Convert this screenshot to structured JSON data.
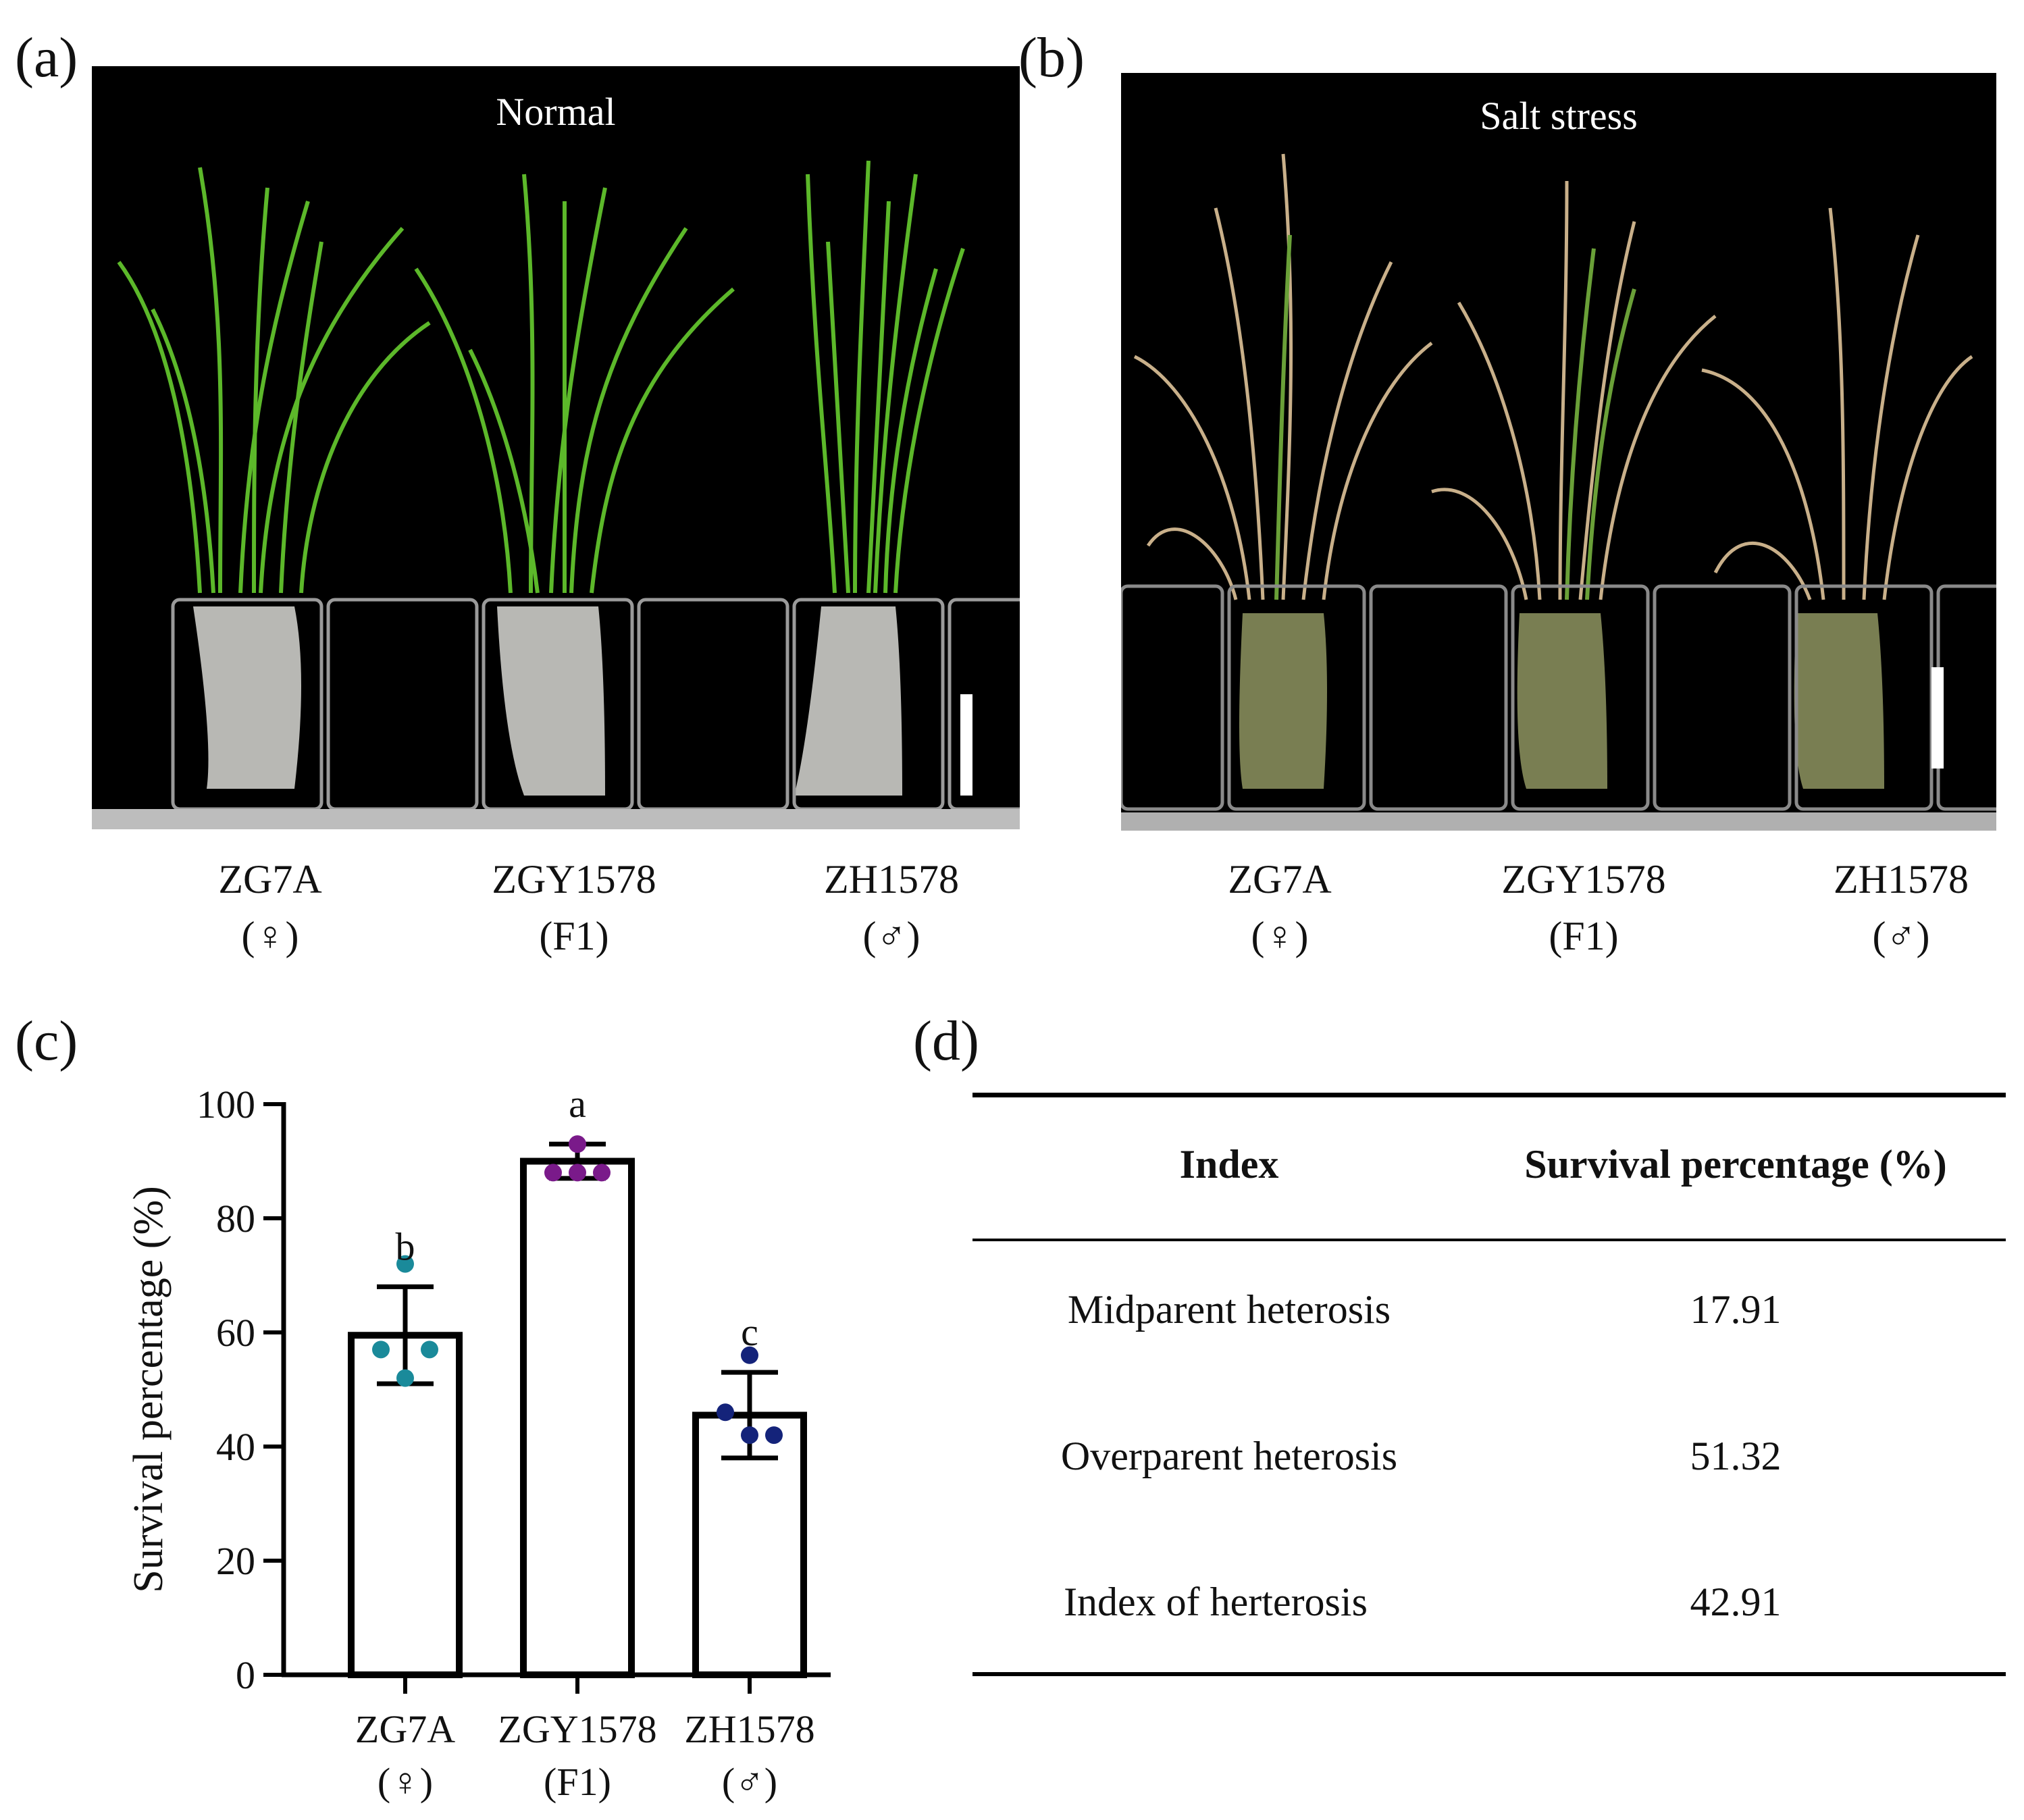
{
  "panels": {
    "a": {
      "label": "(a)",
      "title": "Normal"
    },
    "b": {
      "label": "(b)",
      "title": "Salt stress"
    },
    "c": {
      "label": "(c)"
    },
    "d": {
      "label": "(d)"
    }
  },
  "genotypes": [
    {
      "name": "ZG7A",
      "sub": "(♀)"
    },
    {
      "name": "ZGY1578",
      "sub": "(F1)"
    },
    {
      "name": "ZH1578",
      "sub": "(♂)"
    }
  ],
  "chart_data": {
    "type": "bar",
    "ylabel": "Survival percentage (%)",
    "ylim": [
      0,
      100
    ],
    "yticks": [
      0,
      20,
      40,
      60,
      80,
      100
    ],
    "categories": [
      "ZG7A",
      "ZGY1578",
      "ZH1578"
    ],
    "category_subs": [
      "(♀)",
      "(F1)",
      "(♂)"
    ],
    "values": [
      59.5,
      90,
      45.5
    ],
    "error": [
      8.5,
      3,
      7.5
    ],
    "significance": [
      "b",
      "a",
      "c"
    ],
    "points": [
      [
        72,
        57,
        57,
        52
      ],
      [
        93,
        88,
        88,
        88
      ],
      [
        56,
        46,
        42,
        42
      ]
    ],
    "point_colors": [
      "#1a8a9a",
      "#7a1a8a",
      "#14237a"
    ]
  },
  "table": {
    "headers": [
      "Index",
      "Survival percentage (%)"
    ],
    "rows": [
      [
        "Midparent heterosis",
        "17.91"
      ],
      [
        "Overparent heterosis",
        "51.32"
      ],
      [
        "Index of  herterosis",
        "42.91"
      ]
    ]
  }
}
